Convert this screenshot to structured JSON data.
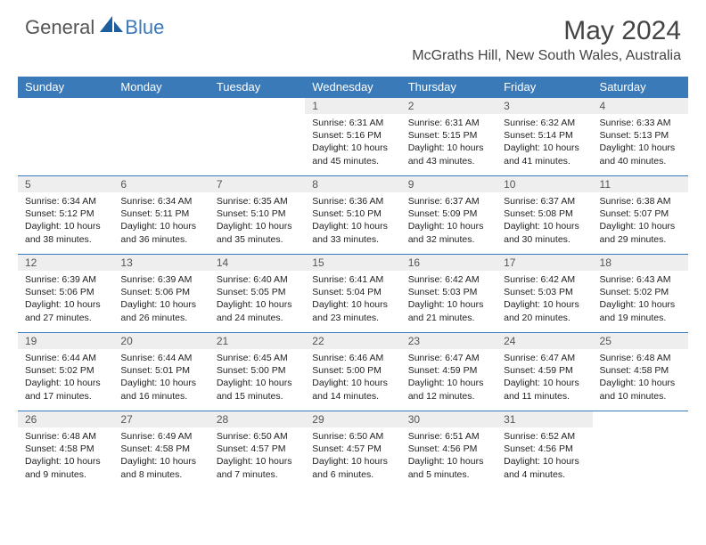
{
  "logo": {
    "general": "General",
    "blue": "Blue"
  },
  "title": "May 2024",
  "location": "McGraths Hill, New South Wales, Australia",
  "colors": {
    "header_bg": "#3a7ab8",
    "header_fg": "#ffffff",
    "daynum_bg": "#eeeeee",
    "border": "#3a7ab8",
    "text": "#222222",
    "logo_gray": "#555555",
    "logo_blue": "#3a7ab8"
  },
  "columns": [
    "Sunday",
    "Monday",
    "Tuesday",
    "Wednesday",
    "Thursday",
    "Friday",
    "Saturday"
  ],
  "weeks": [
    [
      null,
      null,
      null,
      {
        "d": "1",
        "sr": "6:31 AM",
        "ss": "5:16 PM",
        "dl": "10 hours and 45 minutes."
      },
      {
        "d": "2",
        "sr": "6:31 AM",
        "ss": "5:15 PM",
        "dl": "10 hours and 43 minutes."
      },
      {
        "d": "3",
        "sr": "6:32 AM",
        "ss": "5:14 PM",
        "dl": "10 hours and 41 minutes."
      },
      {
        "d": "4",
        "sr": "6:33 AM",
        "ss": "5:13 PM",
        "dl": "10 hours and 40 minutes."
      }
    ],
    [
      {
        "d": "5",
        "sr": "6:34 AM",
        "ss": "5:12 PM",
        "dl": "10 hours and 38 minutes."
      },
      {
        "d": "6",
        "sr": "6:34 AM",
        "ss": "5:11 PM",
        "dl": "10 hours and 36 minutes."
      },
      {
        "d": "7",
        "sr": "6:35 AM",
        "ss": "5:10 PM",
        "dl": "10 hours and 35 minutes."
      },
      {
        "d": "8",
        "sr": "6:36 AM",
        "ss": "5:10 PM",
        "dl": "10 hours and 33 minutes."
      },
      {
        "d": "9",
        "sr": "6:37 AM",
        "ss": "5:09 PM",
        "dl": "10 hours and 32 minutes."
      },
      {
        "d": "10",
        "sr": "6:37 AM",
        "ss": "5:08 PM",
        "dl": "10 hours and 30 minutes."
      },
      {
        "d": "11",
        "sr": "6:38 AM",
        "ss": "5:07 PM",
        "dl": "10 hours and 29 minutes."
      }
    ],
    [
      {
        "d": "12",
        "sr": "6:39 AM",
        "ss": "5:06 PM",
        "dl": "10 hours and 27 minutes."
      },
      {
        "d": "13",
        "sr": "6:39 AM",
        "ss": "5:06 PM",
        "dl": "10 hours and 26 minutes."
      },
      {
        "d": "14",
        "sr": "6:40 AM",
        "ss": "5:05 PM",
        "dl": "10 hours and 24 minutes."
      },
      {
        "d": "15",
        "sr": "6:41 AM",
        "ss": "5:04 PM",
        "dl": "10 hours and 23 minutes."
      },
      {
        "d": "16",
        "sr": "6:42 AM",
        "ss": "5:03 PM",
        "dl": "10 hours and 21 minutes."
      },
      {
        "d": "17",
        "sr": "6:42 AM",
        "ss": "5:03 PM",
        "dl": "10 hours and 20 minutes."
      },
      {
        "d": "18",
        "sr": "6:43 AM",
        "ss": "5:02 PM",
        "dl": "10 hours and 19 minutes."
      }
    ],
    [
      {
        "d": "19",
        "sr": "6:44 AM",
        "ss": "5:02 PM",
        "dl": "10 hours and 17 minutes."
      },
      {
        "d": "20",
        "sr": "6:44 AM",
        "ss": "5:01 PM",
        "dl": "10 hours and 16 minutes."
      },
      {
        "d": "21",
        "sr": "6:45 AM",
        "ss": "5:00 PM",
        "dl": "10 hours and 15 minutes."
      },
      {
        "d": "22",
        "sr": "6:46 AM",
        "ss": "5:00 PM",
        "dl": "10 hours and 14 minutes."
      },
      {
        "d": "23",
        "sr": "6:47 AM",
        "ss": "4:59 PM",
        "dl": "10 hours and 12 minutes."
      },
      {
        "d": "24",
        "sr": "6:47 AM",
        "ss": "4:59 PM",
        "dl": "10 hours and 11 minutes."
      },
      {
        "d": "25",
        "sr": "6:48 AM",
        "ss": "4:58 PM",
        "dl": "10 hours and 10 minutes."
      }
    ],
    [
      {
        "d": "26",
        "sr": "6:48 AM",
        "ss": "4:58 PM",
        "dl": "10 hours and 9 minutes."
      },
      {
        "d": "27",
        "sr": "6:49 AM",
        "ss": "4:58 PM",
        "dl": "10 hours and 8 minutes."
      },
      {
        "d": "28",
        "sr": "6:50 AM",
        "ss": "4:57 PM",
        "dl": "10 hours and 7 minutes."
      },
      {
        "d": "29",
        "sr": "6:50 AM",
        "ss": "4:57 PM",
        "dl": "10 hours and 6 minutes."
      },
      {
        "d": "30",
        "sr": "6:51 AM",
        "ss": "4:56 PM",
        "dl": "10 hours and 5 minutes."
      },
      {
        "d": "31",
        "sr": "6:52 AM",
        "ss": "4:56 PM",
        "dl": "10 hours and 4 minutes."
      },
      null
    ]
  ],
  "labels": {
    "sunrise": "Sunrise: ",
    "sunset": "Sunset: ",
    "daylight": "Daylight: "
  }
}
